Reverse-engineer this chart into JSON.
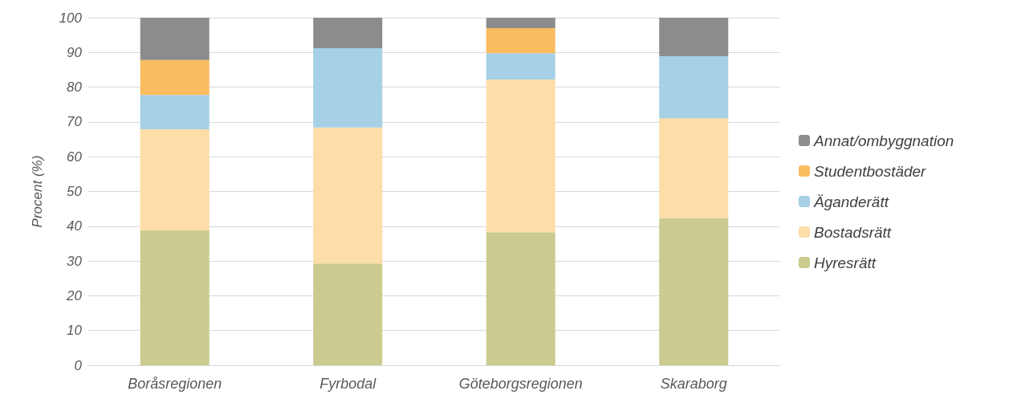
{
  "chart_data": {
    "type": "bar",
    "stacked": true,
    "ylabel": "Procent (%)",
    "categories": [
      "Boråsregionen",
      "Fyrbodal",
      "Göteborgsregionen",
      "Skaraborg"
    ],
    "series": [
      {
        "name": "Hyresrätt",
        "color": "#cbcb8f",
        "values": [
          38.8,
          29.3,
          38.3,
          42.3
        ]
      },
      {
        "name": "Bostadsrätt",
        "color": "#fddda8",
        "values": [
          29.1,
          39.1,
          43.9,
          28.8
        ]
      },
      {
        "name": "Äganderätt",
        "color": "#a5d0e6",
        "values": [
          9.9,
          22.8,
          7.6,
          17.8
        ]
      },
      {
        "name": "Studentbostäder",
        "color": "#f9bc5e",
        "values": [
          10.0,
          0,
          7.2,
          0
        ]
      },
      {
        "name": "Annat/ombyggnation",
        "color": "#8c8c8c",
        "values": [
          12.2,
          8.8,
          3.0,
          11.1
        ]
      }
    ],
    "ylim": [
      0,
      100
    ],
    "yticks": [
      0,
      10,
      20,
      30,
      40,
      50,
      60,
      70,
      80,
      90,
      100
    ],
    "grid": "y",
    "legend": "right"
  }
}
